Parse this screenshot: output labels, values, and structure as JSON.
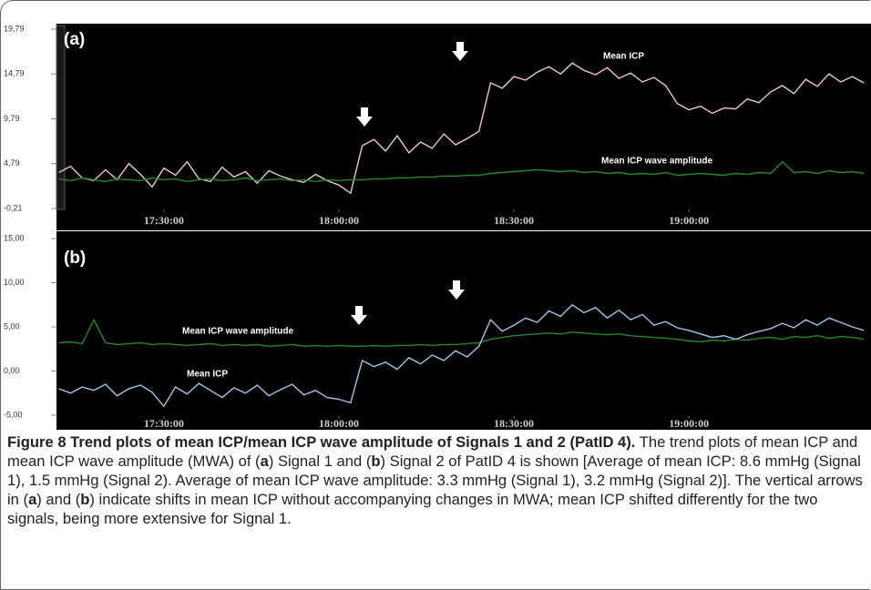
{
  "chart_data": [
    {
      "type": "line",
      "title": "(a)",
      "x": [
        1032,
        1034,
        1036,
        1038,
        1040,
        1042,
        1044,
        1046,
        1048,
        1050,
        1052,
        1054,
        1056,
        1058,
        1060,
        1062,
        1064,
        1066,
        1068,
        1070,
        1072,
        1074,
        1076,
        1078,
        1080,
        1082,
        1084,
        1086,
        1088,
        1090,
        1092,
        1094,
        1096,
        1098,
        1100,
        1102,
        1104,
        1106,
        1108,
        1110,
        1112,
        1114,
        1116,
        1118,
        1120,
        1122,
        1124,
        1126,
        1128,
        1130,
        1132,
        1134,
        1136,
        1138,
        1140,
        1142,
        1144,
        1146,
        1148,
        1150,
        1152,
        1154,
        1156,
        1158,
        1160,
        1162,
        1164,
        1166,
        1168,
        1170
      ],
      "series": [
        {
          "name": "Mean ICP",
          "color": "#f0c4cc",
          "values": [
            3.8,
            4.5,
            3.2,
            2.9,
            4.1,
            3.0,
            4.8,
            3.6,
            2.2,
            4.3,
            3.5,
            5.0,
            3.1,
            2.8,
            4.4,
            3.3,
            3.9,
            2.6,
            4.0,
            3.4,
            3.0,
            2.7,
            3.6,
            2.9,
            2.4,
            1.5,
            6.8,
            7.5,
            6.2,
            7.9,
            6.0,
            7.2,
            6.5,
            8.1,
            6.9,
            7.6,
            8.4,
            13.8,
            13.2,
            14.5,
            14.1,
            15.0,
            15.6,
            14.8,
            16.0,
            15.2,
            14.7,
            15.5,
            14.3,
            14.9,
            13.9,
            14.4,
            13.5,
            11.5,
            10.8,
            11.2,
            10.4,
            11.0,
            10.9,
            12.0,
            11.6,
            12.8,
            13.5,
            12.6,
            14.2,
            13.4,
            14.8,
            13.9,
            14.5,
            13.8
          ]
        },
        {
          "name": "Mean ICP wave amplitude",
          "color": "#1f8a2a",
          "values": [
            3.1,
            2.9,
            3.2,
            3.0,
            2.8,
            3.1,
            3.0,
            2.9,
            3.2,
            3.0,
            3.1,
            2.8,
            3.0,
            3.1,
            2.9,
            3.0,
            3.2,
            2.9,
            3.0,
            3.1,
            2.9,
            3.0,
            2.8,
            3.0,
            2.9,
            3.0,
            3.0,
            3.1,
            3.1,
            3.2,
            3.2,
            3.3,
            3.3,
            3.4,
            3.4,
            3.5,
            3.5,
            3.7,
            3.8,
            3.9,
            4.0,
            4.1,
            4.0,
            3.9,
            4.0,
            3.8,
            3.9,
            3.7,
            3.8,
            3.6,
            3.7,
            3.6,
            3.8,
            3.5,
            3.6,
            3.7,
            3.6,
            3.5,
            3.7,
            3.6,
            3.8,
            3.7,
            5.0,
            3.8,
            3.9,
            3.7,
            4.0,
            3.8,
            3.9,
            3.7
          ]
        }
      ],
      "xlim": [
        1031.6,
        1171.2
      ],
      "xticks": [
        {
          "value": 1050,
          "label": "17:30:00"
        },
        {
          "value": 1080,
          "label": "18:00:00"
        },
        {
          "value": 1110,
          "label": "18:30:00"
        },
        {
          "value": 1140,
          "label": "19:00:00"
        }
      ],
      "ylim": [
        -0.21,
        19.79
      ],
      "yticks": [
        {
          "value": -0.21,
          "label": "-0,21"
        },
        {
          "value": 4.79,
          "label": "4,79"
        },
        {
          "value": 9.79,
          "label": "9,79"
        },
        {
          "value": 14.79,
          "label": "14,79"
        },
        {
          "value": 19.79,
          "label": "19,79"
        }
      ]
    },
    {
      "type": "line",
      "title": "(b)",
      "x": [
        1032,
        1034,
        1036,
        1038,
        1040,
        1042,
        1044,
        1046,
        1048,
        1050,
        1052,
        1054,
        1056,
        1058,
        1060,
        1062,
        1064,
        1066,
        1068,
        1070,
        1072,
        1074,
        1076,
        1078,
        1080,
        1082,
        1084,
        1086,
        1088,
        1090,
        1092,
        1094,
        1096,
        1098,
        1100,
        1102,
        1104,
        1106,
        1108,
        1110,
        1112,
        1114,
        1116,
        1118,
        1120,
        1122,
        1124,
        1126,
        1128,
        1130,
        1132,
        1134,
        1136,
        1138,
        1140,
        1142,
        1144,
        1146,
        1148,
        1150,
        1152,
        1154,
        1156,
        1158,
        1160,
        1162,
        1164,
        1166,
        1168,
        1170
      ],
      "series": [
        {
          "name": "Mean ICP wave amplitude",
          "color": "#1f8a2a",
          "values": [
            3.2,
            3.3,
            3.1,
            5.8,
            3.2,
            3.0,
            3.1,
            3.2,
            3.0,
            3.1,
            3.0,
            2.9,
            3.0,
            3.1,
            2.9,
            3.0,
            2.9,
            3.0,
            2.8,
            2.9,
            3.0,
            2.8,
            2.9,
            2.8,
            2.9,
            2.8,
            2.8,
            2.9,
            2.8,
            2.9,
            2.9,
            3.0,
            2.9,
            3.0,
            3.0,
            3.1,
            3.2,
            3.6,
            3.8,
            4.0,
            4.1,
            4.2,
            4.3,
            4.2,
            4.4,
            4.3,
            4.2,
            4.1,
            4.2,
            4.0,
            3.9,
            3.8,
            3.7,
            3.6,
            3.4,
            3.3,
            3.5,
            3.4,
            3.6,
            3.5,
            3.7,
            3.8,
            3.6,
            3.9,
            3.8,
            4.0,
            3.7,
            3.9,
            3.8,
            3.6
          ]
        },
        {
          "name": "Mean ICP",
          "color": "#9cc8ea",
          "values": [
            -2.0,
            -2.5,
            -1.8,
            -2.2,
            -1.5,
            -2.8,
            -2.0,
            -1.6,
            -2.4,
            -4.0,
            -1.8,
            -2.6,
            -1.4,
            -2.2,
            -3.0,
            -1.9,
            -2.5,
            -1.6,
            -2.8,
            -2.1,
            -1.5,
            -2.7,
            -2.2,
            -3.0,
            -3.2,
            -3.6,
            1.2,
            0.5,
            1.0,
            0.2,
            1.5,
            0.8,
            1.8,
            1.2,
            2.3,
            1.6,
            2.8,
            5.8,
            4.5,
            5.2,
            6.0,
            5.5,
            6.8,
            6.2,
            7.5,
            6.6,
            7.2,
            6.0,
            6.9,
            5.8,
            6.4,
            5.2,
            5.6,
            4.9,
            4.6,
            4.2,
            3.8,
            4.0,
            3.6,
            4.1,
            4.5,
            4.8,
            5.4,
            4.9,
            5.8,
            5.2,
            6.0,
            5.5,
            5.0,
            4.6
          ]
        }
      ],
      "xlim": [
        1031.6,
        1171.2
      ],
      "xticks": [
        {
          "value": 1050,
          "label": "17:30:00"
        },
        {
          "value": 1080,
          "label": "18:00:00"
        },
        {
          "value": 1110,
          "label": "18:30:00"
        },
        {
          "value": 1140,
          "label": "19:00:00"
        }
      ],
      "ylim": [
        -5,
        15
      ],
      "yticks": [
        {
          "value": -5,
          "label": "-5,00"
        },
        {
          "value": 0,
          "label": "0,00"
        },
        {
          "value": 5,
          "label": "5,00"
        },
        {
          "value": 10,
          "label": "10,00"
        },
        {
          "value": 15,
          "label": "15,00"
        }
      ]
    }
  ],
  "caption": [
    {
      "text": "Figure 8 Trend plots of mean ICP/mean ICP wave amplitude of Signals 1 and 2 (PatID 4).",
      "bold": true
    },
    {
      "text": " The trend plots of mean ICP and mean ICP wave amplitude (MWA) of (",
      "bold": false
    },
    {
      "text": "a",
      "bold": true
    },
    {
      "text": ") Signal 1 and (",
      "bold": false
    },
    {
      "text": "b",
      "bold": true
    },
    {
      "text": ") Signal 2 of PatID 4 is shown [Average of mean ICP: 8.6 mmHg (Signal 1), 1.5 mmHg (Signal 2). Average of mean ICP wave amplitude: 3.3 mmHg (Signal 1), 3.2 mmHg (Signal 2)]. The vertical arrows in (",
      "bold": false
    },
    {
      "text": "a",
      "bold": true
    },
    {
      "text": ") and (",
      "bold": false
    },
    {
      "text": "b",
      "bold": true
    },
    {
      "text": ") indicate shifts in mean ICP without accompanying changes in MWA; mean ICP shifted differently for the two signals, being more extensive for Signal 1.",
      "bold": false
    }
  ]
}
